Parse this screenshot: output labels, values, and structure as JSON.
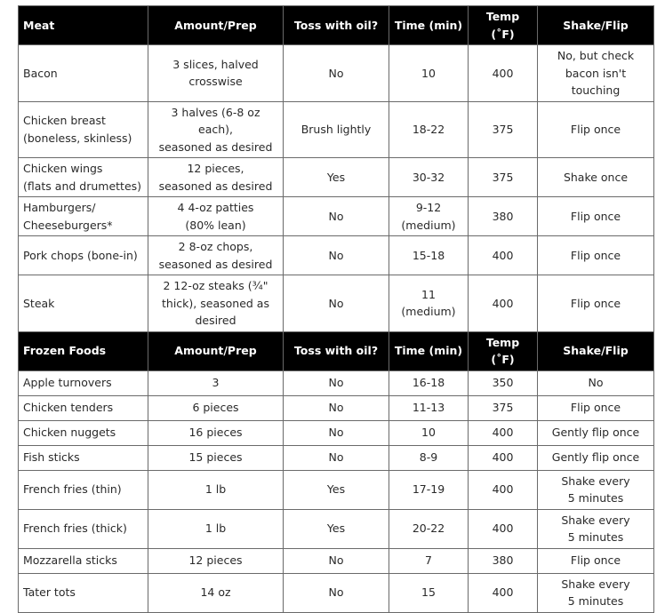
{
  "sections": [
    {
      "header": [
        "Meat",
        "Amount/Prep",
        "Toss with oil?",
        "Time (min)",
        "Temp (˚F)",
        "Shake/Flip"
      ],
      "rows": [
        [
          "Bacon",
          "3 slices, halved\ncrosswise",
          "No",
          "10",
          "400",
          "No, but check\nbacon isn't touching"
        ],
        [
          "Chicken breast\n(boneless, skinless)",
          "3 halves (6-8 oz each),\nseasoned as desired",
          "Brush lightly",
          "18-22",
          "375",
          "Flip once"
        ],
        [
          "Chicken wings\n(flats and drumettes)",
          "12 pieces,\nseasoned as desired",
          "Yes",
          "30-32",
          "375",
          "Shake once"
        ],
        [
          "Hamburgers/\nCheeseburgers*",
          "4 4-oz patties\n(80% lean)",
          "No",
          "9-12\n(medium)",
          "380",
          "Flip once"
        ],
        [
          "Pork chops (bone-in)",
          "2 8-oz chops,\nseasoned as desired",
          "No",
          "15-18",
          "400",
          "Flip once"
        ],
        [
          "Steak",
          "2 12-oz steaks (¾\"\nthick), seasoned as\ndesired",
          "No",
          "11 (medium)",
          "400",
          "Flip once"
        ]
      ]
    },
    {
      "header": [
        "Frozen Foods",
        "Amount/Prep",
        "Toss with oil?",
        "Time (min)",
        "Temp (˚F)",
        "Shake/Flip"
      ],
      "rows": [
        [
          "Apple turnovers",
          "3",
          "No",
          "16-18",
          "350",
          "No"
        ],
        [
          "Chicken tenders",
          "6 pieces",
          "No",
          "11-13",
          "375",
          "Flip once"
        ],
        [
          "Chicken nuggets",
          "16 pieces",
          "No",
          "10",
          "400",
          "Gently flip once"
        ],
        [
          "Fish sticks",
          "15 pieces",
          "No",
          "8-9",
          "400",
          "Gently flip once"
        ],
        [
          "French fries (thin)",
          "1 lb",
          "Yes",
          "17-19",
          "400",
          "Shake every\n5 minutes"
        ],
        [
          "French fries (thick)",
          "1 lb",
          "Yes",
          "20-22",
          "400",
          "Shake every\n5 minutes"
        ],
        [
          "Mozzarella sticks",
          "12 pieces",
          "No",
          "7",
          "380",
          "Flip once"
        ],
        [
          "Tater tots",
          "14 oz",
          "No",
          "15",
          "400",
          "Shake every\n5 minutes"
        ]
      ]
    }
  ]
}
